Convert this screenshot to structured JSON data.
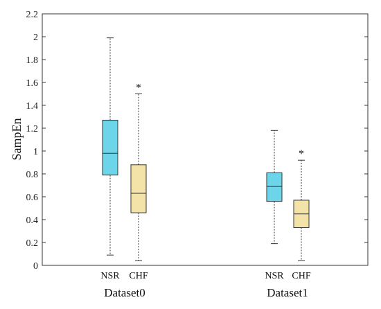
{
  "chart_data": {
    "type": "boxplot",
    "ylabel": "SampEn",
    "ylim": [
      0,
      2.2
    ],
    "yticks": [
      0,
      0.2,
      0.4,
      0.6,
      0.8,
      1,
      1.2,
      1.4,
      1.6,
      1.8,
      2,
      2.2
    ],
    "ytick_labels": [
      "0",
      "0.2",
      "0.4",
      "0.6",
      "0.8",
      "1",
      "1.2",
      "1.4",
      "1.6",
      "1.8",
      "2",
      "2.2"
    ],
    "grid": false,
    "colors": {
      "NSR": "#6dd5ea",
      "CHF": "#f4e3a8"
    },
    "groups": [
      {
        "label": "Dataset0",
        "boxes": [
          {
            "label": "NSR",
            "whisker_low": 0.09,
            "q1": 0.79,
            "median": 0.98,
            "q3": 1.27,
            "whisker_high": 1.99,
            "outliers": []
          },
          {
            "label": "CHF",
            "whisker_low": 0.04,
            "q1": 0.46,
            "median": 0.63,
            "q3": 0.88,
            "whisker_high": 1.5,
            "outliers": [
              1.58
            ]
          }
        ]
      },
      {
        "label": "Dataset1",
        "boxes": [
          {
            "label": "NSR",
            "whisker_low": 0.19,
            "q1": 0.56,
            "median": 0.69,
            "q3": 0.81,
            "whisker_high": 1.18,
            "outliers": []
          },
          {
            "label": "CHF",
            "whisker_low": 0.04,
            "q1": 0.33,
            "median": 0.45,
            "q3": 0.57,
            "whisker_high": 0.92,
            "outliers": [
              1.0
            ]
          }
        ]
      }
    ]
  }
}
